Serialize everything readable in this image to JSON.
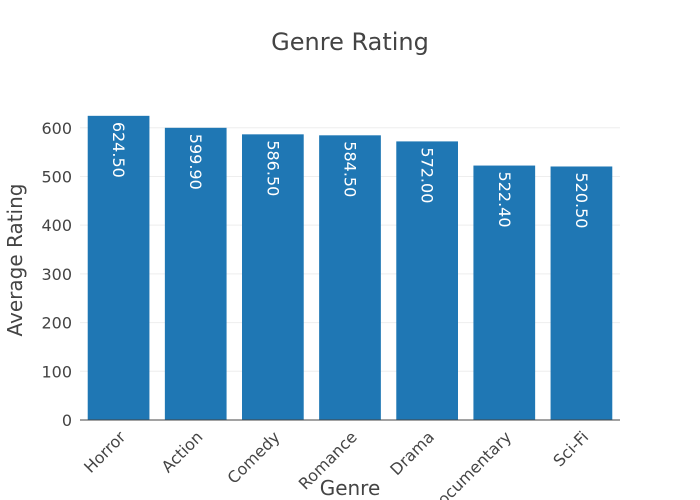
{
  "chart_data": {
    "type": "bar",
    "title": "Genre Rating",
    "xlabel": "Genre",
    "ylabel": "Average Rating",
    "categories": [
      "Horror",
      "Action",
      "Comedy",
      "Romance",
      "Drama",
      "Documentary",
      "Sci-Fi"
    ],
    "values": [
      624.5,
      599.9,
      586.5,
      584.5,
      572.0,
      522.4,
      520.5
    ],
    "value_labels": [
      "624.50",
      "599.90",
      "586.50",
      "584.50",
      "572.00",
      "522.40",
      "520.50"
    ],
    "ylim": [
      0,
      657
    ],
    "yticks": [
      0,
      100,
      200,
      300,
      400,
      500,
      600
    ],
    "grid": true,
    "legend": "none",
    "bar_color": "#1f77b4",
    "label_color": "#ffffff",
    "axis_color": "#444444",
    "grid_color": "#eeeeee"
  }
}
